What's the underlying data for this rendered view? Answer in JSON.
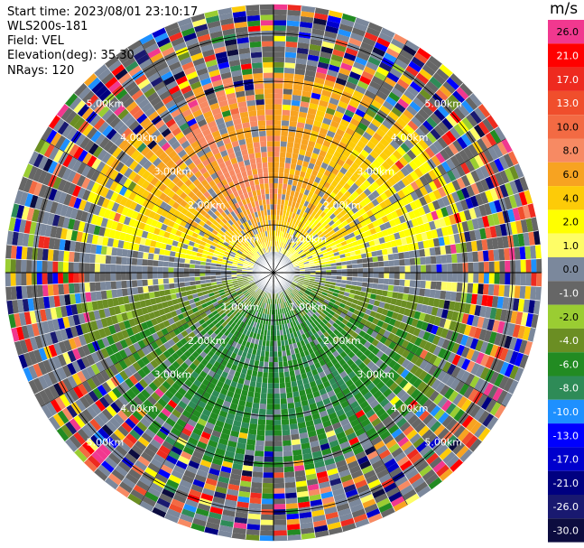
{
  "header": {
    "start_time": "Start time: 2023/08/01 23:10:17",
    "instrument": "WLS200s-181",
    "field": "Field: VEL",
    "elevation": "Elevation(deg): 35.30",
    "nrays": "NRays: 120"
  },
  "colorbar": {
    "unit": "m/s",
    "levels": [
      {
        "label": "26.0",
        "color": "#f1388f"
      },
      {
        "label": "21.0",
        "color": "#ff0000"
      },
      {
        "label": "17.0",
        "color": "#ee2a1f"
      },
      {
        "label": "13.0",
        "color": "#f04e2c"
      },
      {
        "label": "10.0",
        "color": "#f36a43"
      },
      {
        "label": "8.0",
        "color": "#f78a63"
      },
      {
        "label": "6.0",
        "color": "#f7a321"
      },
      {
        "label": "4.0",
        "color": "#fdcb08"
      },
      {
        "label": "2.0",
        "color": "#ffff00"
      },
      {
        "label": "1.0",
        "color": "#fefd66"
      },
      {
        "label": "0.0",
        "color": "#7b889c"
      },
      {
        "label": "-1.0",
        "color": "#666666"
      },
      {
        "label": "-2.0",
        "color": "#9acd32"
      },
      {
        "label": "-4.0",
        "color": "#6b8e23"
      },
      {
        "label": "-6.0",
        "color": "#228b22"
      },
      {
        "label": "-8.0",
        "color": "#2e8b57"
      },
      {
        "label": "-10.0",
        "color": "#1e90ff"
      },
      {
        "label": "-13.0",
        "color": "#0000ff"
      },
      {
        "label": "-17.0",
        "color": "#0000cd"
      },
      {
        "label": "-21.0",
        "color": "#000080"
      },
      {
        "label": "-26.0",
        "color": "#191970"
      },
      {
        "label": "-30.0",
        "color": "#0c0c3f"
      }
    ]
  },
  "chart_data": {
    "type": "heatmap",
    "projection": "polar (PPI)",
    "field": "VEL",
    "units": "m/s",
    "nrays": 120,
    "range_rings_km": [
      "1.00km",
      "2.00km",
      "3.00km",
      "4.00km",
      "5.00km"
    ],
    "range_ring_values_km": [
      1,
      2,
      3,
      4,
      5
    ],
    "max_range_km": 5.6,
    "pattern": {
      "north_sector": "positive velocities (yellow to salmon, about 2 to 10 m/s)",
      "south_sector": "negative velocities (green, about -2 to -8 m/s)",
      "outer_ranges": "noisy, mixed colors beyond about 4 km"
    }
  }
}
